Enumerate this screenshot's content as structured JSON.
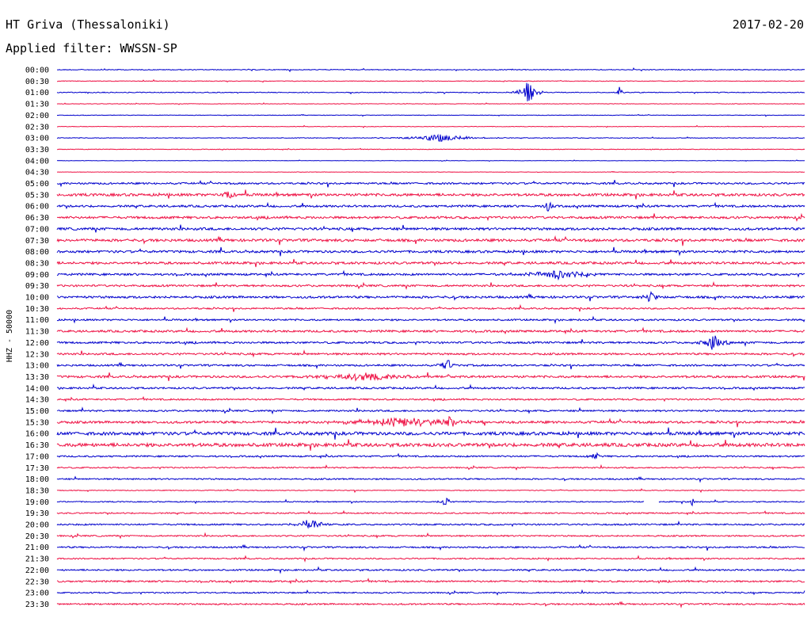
{
  "header": {
    "station": "HT Griva (Thessaloniki)",
    "date": "2017-02-20",
    "filter": "Applied filter: WWSSN-SP"
  },
  "colors": {
    "even_trace": "#0000cc",
    "odd_trace": "#ee1144"
  },
  "chart_data": {
    "type": "line",
    "title": "HT Griva (Thessaloniki)",
    "ylabel": "HHZ - 50000",
    "time_labels": [
      "00:00",
      "00:30",
      "01:00",
      "01:30",
      "02:00",
      "02:30",
      "03:00",
      "03:30",
      "04:00",
      "04:30",
      "05:00",
      "05:30",
      "06:00",
      "06:30",
      "07:00",
      "07:30",
      "08:00",
      "08:30",
      "09:00",
      "09:30",
      "10:00",
      "10:30",
      "11:00",
      "11:30",
      "12:00",
      "12:30",
      "13:00",
      "13:30",
      "14:00",
      "14:30",
      "15:00",
      "15:30",
      "16:00",
      "16:30",
      "17:00",
      "17:30",
      "18:00",
      "18:30",
      "19:00",
      "19:30",
      "20:00",
      "20:30",
      "21:00",
      "21:30",
      "22:00",
      "22:30",
      "23:00",
      "23:30"
    ],
    "noise_level": [
      0.6,
      0.5,
      0.6,
      0.4,
      0.4,
      0.4,
      0.5,
      0.5,
      0.3,
      0.3,
      1.4,
      2.0,
      1.6,
      1.8,
      1.9,
      2.0,
      1.8,
      1.8,
      1.6,
      1.5,
      1.7,
      1.2,
      1.3,
      1.6,
      1.5,
      1.5,
      1.4,
      1.7,
      1.4,
      1.2,
      1.3,
      1.8,
      2.4,
      2.6,
      1.2,
      1.0,
      1.1,
      0.6,
      0.8,
      1.0,
      1.2,
      1.1,
      1.2,
      1.0,
      1.2,
      1.3,
      1.0,
      1.2
    ],
    "events": [
      {
        "row": 2,
        "x": 0.63,
        "amp": 16,
        "width": 0.008
      },
      {
        "row": 2,
        "x": 0.753,
        "amp": 12,
        "width": 0.002
      },
      {
        "row": 6,
        "x": 0.51,
        "amp": 5,
        "width": 0.03
      },
      {
        "row": 11,
        "x": 0.23,
        "amp": 8,
        "width": 0.006
      },
      {
        "row": 12,
        "x": 0.656,
        "amp": 8,
        "width": 0.004
      },
      {
        "row": 18,
        "x": 0.67,
        "amp": 6,
        "width": 0.03
      },
      {
        "row": 20,
        "x": 0.795,
        "amp": 9,
        "width": 0.005
      },
      {
        "row": 24,
        "x": 0.878,
        "amp": 8,
        "width": 0.012
      },
      {
        "row": 26,
        "x": 0.522,
        "amp": 8,
        "width": 0.006
      },
      {
        "row": 27,
        "x": 0.415,
        "amp": 6,
        "width": 0.04
      },
      {
        "row": 31,
        "x": 0.46,
        "amp": 6,
        "width": 0.05
      },
      {
        "row": 31,
        "x": 0.525,
        "amp": 9,
        "width": 0.005
      },
      {
        "row": 34,
        "x": 0.72,
        "amp": 6,
        "width": 0.005
      },
      {
        "row": 38,
        "x": 0.52,
        "amp": 8,
        "width": 0.004
      },
      {
        "row": 38,
        "x": 0.85,
        "amp": 9,
        "width": 0.002
      },
      {
        "row": 40,
        "x": 0.34,
        "amp": 8,
        "width": 0.012
      }
    ],
    "gaps": [
      {
        "row": 38,
        "start": 0.785,
        "end": 0.805
      }
    ]
  }
}
